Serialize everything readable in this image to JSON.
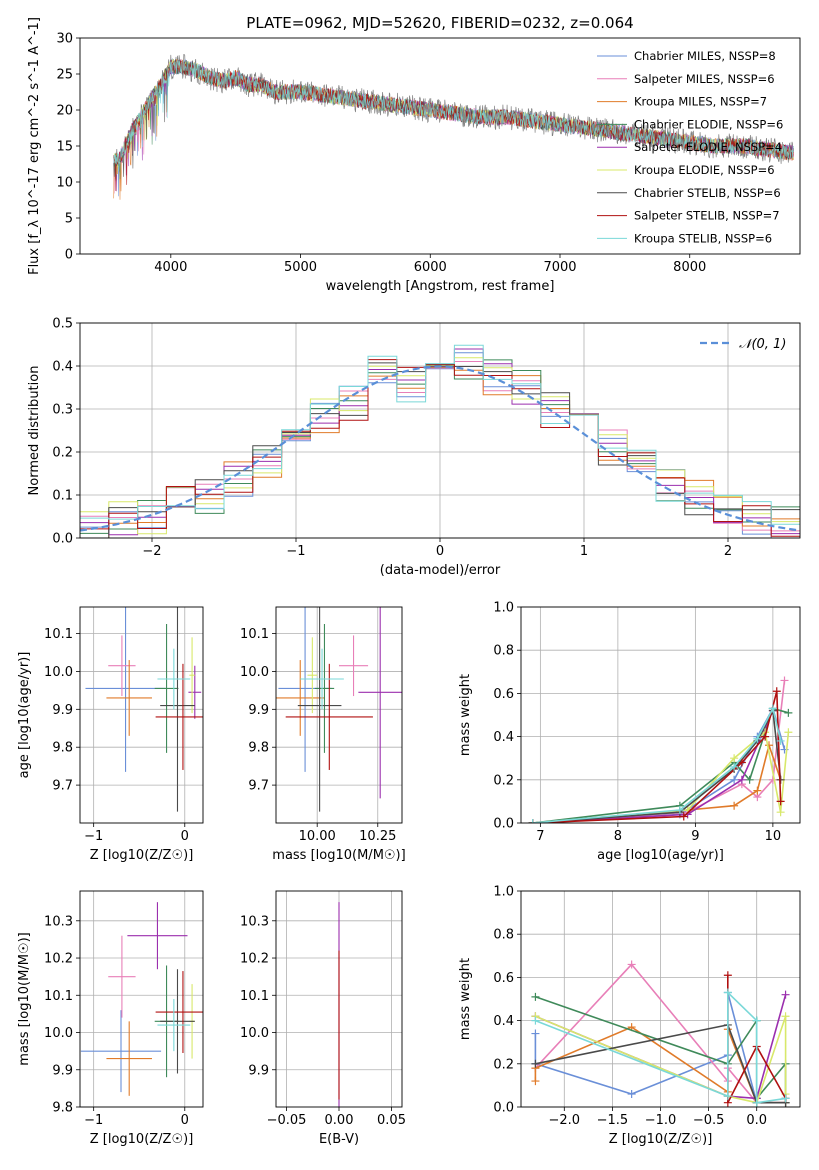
{
  "figure": {
    "title": "PLATE=0962, MJD=52620, FIBERID=0232, z=0.064"
  },
  "colors": {
    "series": [
      "#6a8fd8",
      "#e87fb8",
      "#e07b2a",
      "#3f8a5a",
      "#9b2fae",
      "#d8e86a",
      "#4a4a4a",
      "#b01010",
      "#7ad8d8"
    ],
    "data": "#808080",
    "normal": "#5a8fd8",
    "grid": "#b0b0b0"
  },
  "legend": [
    "Chabrier MILES, N_SSP=8",
    "Salpeter MILES, N_SSP=6",
    "Kroupa MILES, N_SSP=7",
    "Chabrier ELODIE, N_SSP=6",
    "Salpeter ELODIE, N_SSP=4",
    "Kroupa ELODIE, N_SSP=6",
    "Chabrier STELIB, N_SSP=6",
    "Salpeter STELIB, N_SSP=7",
    "Kroupa STELIB, N_SSP=6"
  ],
  "chart_data": [
    {
      "id": "spectrum",
      "type": "line",
      "xlabel": "wavelength [Angstrom, rest frame]",
      "ylabel": "Flux [f_λ 10^-17 erg cm^-2 s^-1 A^-1]",
      "xlim": [
        3300,
        8850
      ],
      "ylim": [
        0,
        30
      ],
      "xticks": [
        4000,
        5000,
        6000,
        7000,
        8000
      ],
      "yticks": [
        0,
        5,
        10,
        15,
        20,
        25,
        30
      ],
      "grid": false,
      "legend_position": "top-right",
      "x": [
        3600,
        3700,
        3800,
        3900,
        4000,
        4100,
        4200,
        4300,
        4400,
        4500,
        4600,
        4700,
        4800,
        4900,
        5000,
        5200,
        5400,
        5600,
        5800,
        6000,
        6200,
        6400,
        6600,
        6800,
        7000,
        7200,
        7400,
        7600,
        7800,
        8000,
        8200,
        8400,
        8600,
        8800
      ],
      "y": [
        13,
        17,
        20,
        23,
        26,
        26,
        25.5,
        24.5,
        24,
        24.5,
        23.5,
        23.5,
        22.5,
        22.5,
        22.5,
        22,
        21.5,
        21,
        20.5,
        20,
        19.5,
        19,
        19,
        18.5,
        18,
        17.5,
        17,
        16.5,
        16,
        15.5,
        15,
        15,
        14.5,
        14
      ]
    },
    {
      "id": "residuals",
      "type": "histogram",
      "xlabel": "(data-model)/error",
      "ylabel": "Normed distribution",
      "xlim": [
        -2.5,
        2.5
      ],
      "ylim": [
        0,
        0.5
      ],
      "xticks": [
        -2,
        -1,
        0,
        1,
        2
      ],
      "yticks": [
        0.0,
        0.1,
        0.2,
        0.3,
        0.4,
        0.5
      ],
      "grid": true,
      "legend": [
        "N(0,1)"
      ],
      "legend_position": "top-right",
      "bin_edges": [
        -2.5,
        -2.3,
        -2.1,
        -1.9,
        -1.7,
        -1.5,
        -1.3,
        -1.1,
        -0.9,
        -0.7,
        -0.5,
        -0.3,
        -0.1,
        0.1,
        0.3,
        0.5,
        0.7,
        0.9,
        1.1,
        1.3,
        1.5,
        1.7,
        1.9,
        2.1,
        2.3,
        2.5
      ],
      "density": [
        0.03,
        0.05,
        0.05,
        0.08,
        0.1,
        0.14,
        0.17,
        0.22,
        0.28,
        0.31,
        0.38,
        0.36,
        0.4,
        0.41,
        0.37,
        0.35,
        0.3,
        0.27,
        0.21,
        0.16,
        0.13,
        0.09,
        0.06,
        0.05,
        0.03
      ]
    },
    {
      "id": "age-vs-Z",
      "type": "scatter",
      "xlabel": "Z [log10(Z/Z☉)]",
      "ylabel": "age  [log10(age/yr)]",
      "xlim": [
        -1.15,
        0.2
      ],
      "ylim": [
        9.6,
        10.17
      ],
      "xticks": [
        -1,
        0
      ],
      "yticks": [
        9.7,
        9.8,
        9.9,
        10.0,
        10.1
      ],
      "grid": true,
      "points": [
        {
          "x": -0.65,
          "y": 9.955,
          "xerr": 0.44,
          "yerr": 0.22
        },
        {
          "x": -0.69,
          "y": 10.015,
          "xerr": 0.15,
          "yerr": 0.08
        },
        {
          "x": -0.61,
          "y": 9.93,
          "xerr": 0.25,
          "yerr": 0.1
        },
        {
          "x": -0.2,
          "y": 9.955,
          "xerr": 0.13,
          "yerr": 0.17
        },
        {
          "x": 0.11,
          "y": 9.945,
          "xerr": 0.07,
          "yerr": 0.07
        },
        {
          "x": 0.08,
          "y": 9.99,
          "xerr": 0.03,
          "yerr": 0.1
        },
        {
          "x": -0.08,
          "y": 9.91,
          "xerr": 0.19,
          "yerr": 0.28
        },
        {
          "x": -0.02,
          "y": 9.88,
          "xerr": 0.3,
          "yerr": 0.14
        },
        {
          "x": -0.12,
          "y": 9.98,
          "xerr": 0.18,
          "yerr": 0.08
        }
      ]
    },
    {
      "id": "age-vs-mass",
      "type": "scatter",
      "xlabel": "mass [log10(M/M☉)]",
      "ylabel": "",
      "xlim": [
        9.83,
        10.35
      ],
      "ylim": [
        9.6,
        10.17
      ],
      "xticks": [
        10.0,
        10.25
      ],
      "yticks": [
        9.7,
        9.8,
        9.9,
        10.0,
        10.1
      ],
      "grid": true,
      "points": [
        {
          "x": 9.95,
          "y": 9.955,
          "xerr": 0.11,
          "yerr": 0.22
        },
        {
          "x": 10.15,
          "y": 10.015,
          "xerr": 0.06,
          "yerr": 0.08
        },
        {
          "x": 9.93,
          "y": 9.93,
          "xerr": 0.1,
          "yerr": 0.1
        },
        {
          "x": 10.03,
          "y": 9.955,
          "xerr": 0.04,
          "yerr": 0.17
        },
        {
          "x": 10.26,
          "y": 9.945,
          "xerr": 0.09,
          "yerr": 0.28
        },
        {
          "x": 9.98,
          "y": 9.99,
          "xerr": 0.02,
          "yerr": 0.1
        },
        {
          "x": 10.01,
          "y": 9.91,
          "xerr": 0.09,
          "yerr": 0.28
        },
        {
          "x": 10.05,
          "y": 9.88,
          "xerr": 0.18,
          "yerr": 0.14
        },
        {
          "x": 10.02,
          "y": 9.98,
          "xerr": 0.09,
          "yerr": 0.08
        }
      ]
    },
    {
      "id": "weight-vs-age",
      "type": "line",
      "xlabel": "age  [log10(age/yr)]",
      "ylabel": "mass weight",
      "xlim": [
        6.75,
        10.35
      ],
      "ylim": [
        0,
        1
      ],
      "xticks": [
        7,
        8,
        9,
        10
      ],
      "yticks": [
        0.0,
        0.2,
        0.4,
        0.6,
        0.8,
        1.0
      ],
      "grid": true,
      "series": [
        {
          "x": [
            6.9,
            8.8,
            9.5,
            9.8,
            10.0,
            10.15
          ],
          "y": [
            0.0,
            0.04,
            0.2,
            0.4,
            0.53,
            0.34
          ]
        },
        {
          "x": [
            6.9,
            8.9,
            9.6,
            9.8,
            10.0,
            10.15
          ],
          "y": [
            0.0,
            0.05,
            0.18,
            0.12,
            0.2,
            0.66
          ]
        },
        {
          "x": [
            6.9,
            8.9,
            9.5,
            9.8,
            9.95,
            10.1
          ],
          "y": [
            0.0,
            0.06,
            0.08,
            0.15,
            0.36,
            0.2
          ]
        },
        {
          "x": [
            6.9,
            8.8,
            9.5,
            9.7,
            10.0,
            10.2
          ],
          "y": [
            0.0,
            0.08,
            0.28,
            0.2,
            0.53,
            0.51
          ]
        },
        {
          "x": [
            6.9,
            8.9,
            9.6,
            10.0
          ],
          "y": [
            0.0,
            0.04,
            0.2,
            0.52
          ]
        },
        {
          "x": [
            6.9,
            8.9,
            9.5,
            9.9,
            10.1,
            10.2
          ],
          "y": [
            0.0,
            0.06,
            0.3,
            0.42,
            0.05,
            0.42
          ]
        },
        {
          "x": [
            6.9,
            8.8,
            9.5,
            9.8,
            10.0,
            10.1
          ],
          "y": [
            0.0,
            0.05,
            0.25,
            0.38,
            0.52,
            0.2
          ]
        },
        {
          "x": [
            6.9,
            8.85,
            9.6,
            9.9,
            10.05,
            10.1
          ],
          "y": [
            0.0,
            0.03,
            0.28,
            0.4,
            0.61,
            0.1
          ]
        },
        {
          "x": [
            6.9,
            8.8,
            9.5,
            9.8,
            10.0,
            10.1
          ],
          "y": [
            0.0,
            0.06,
            0.26,
            0.39,
            0.53,
            0.38
          ]
        }
      ]
    },
    {
      "id": "mass-vs-Z",
      "type": "scatter",
      "xlabel": "Z [log10(Z/Z☉)]",
      "ylabel": "mass [log10(M/M☉)]",
      "xlim": [
        -1.15,
        0.2
      ],
      "ylim": [
        9.8,
        10.38
      ],
      "xticks": [
        -1,
        0
      ],
      "yticks": [
        9.8,
        9.9,
        10.0,
        10.1,
        10.2,
        10.3
      ],
      "grid": true,
      "points": [
        {
          "x": -0.7,
          "y": 9.95,
          "xerr": 0.44,
          "yerr": 0.11
        },
        {
          "x": -0.69,
          "y": 10.15,
          "xerr": 0.15,
          "yerr": 0.11
        },
        {
          "x": -0.61,
          "y": 9.93,
          "xerr": 0.25,
          "yerr": 0.1
        },
        {
          "x": -0.2,
          "y": 10.03,
          "xerr": 0.13,
          "yerr": 0.15
        },
        {
          "x": -0.3,
          "y": 10.26,
          "xerr": 0.33,
          "yerr": 0.09
        },
        {
          "x": 0.08,
          "y": 10.03,
          "xerr": 0.03,
          "yerr": 0.1
        },
        {
          "x": -0.08,
          "y": 10.03,
          "xerr": 0.19,
          "yerr": 0.14
        },
        {
          "x": -0.02,
          "y": 10.055,
          "xerr": 0.3,
          "yerr": 0.11
        },
        {
          "x": -0.12,
          "y": 10.02,
          "xerr": 0.18,
          "yerr": 0.07
        }
      ]
    },
    {
      "id": "mass-vs-EBV",
      "type": "scatter",
      "xlabel": "E(B-V)",
      "ylabel": "",
      "xlim": [
        -0.06,
        0.06
      ],
      "ylim": [
        9.8,
        10.38
      ],
      "xticks": [
        -0.05,
        0.0,
        0.05
      ],
      "yticks": [
        9.9,
        10.0,
        10.1,
        10.2,
        10.3
      ],
      "grid": true,
      "points": [
        {
          "x": 0.0,
          "y": 10.03,
          "xerr": 0.0,
          "yerr": 0.32
        },
        {
          "x": 0.0,
          "y": 10.02,
          "xerr": 0.0,
          "yerr": 0.2
        }
      ]
    },
    {
      "id": "weight-vs-Z",
      "type": "line",
      "xlabel": "Z [log10(Z/Z☉)]",
      "ylabel": "mass weight",
      "xlim": [
        -2.45,
        0.45
      ],
      "ylim": [
        0,
        1
      ],
      "xticks": [
        -2.0,
        -1.5,
        -1.0,
        -0.5,
        0.0
      ],
      "yticks": [
        0.0,
        0.2,
        0.4,
        0.6,
        0.8,
        1.0
      ],
      "grid": true,
      "series": [
        {
          "x": [
            -2.3,
            -2.3,
            -1.3,
            -0.3,
            -0.3,
            0.0,
            0.3
          ],
          "y": [
            0.34,
            0.2,
            0.06,
            0.24,
            0.53,
            0.02,
            0.02
          ]
        },
        {
          "x": [
            -2.3,
            -1.3,
            -0.3,
            -0.3,
            0.0,
            0.3
          ],
          "y": [
            0.18,
            0.66,
            0.12,
            0.18,
            0.02,
            0.02
          ]
        },
        {
          "x": [
            -2.3,
            -2.3,
            -1.3,
            -0.3,
            -0.3,
            0.0,
            0.3
          ],
          "y": [
            0.12,
            0.18,
            0.37,
            0.07,
            0.36,
            0.02,
            0.02
          ]
        },
        {
          "x": [
            -2.3,
            -0.3,
            0.0,
            0.0,
            0.3,
            0.3
          ],
          "y": [
            0.51,
            0.2,
            0.4,
            0.04,
            0.2,
            0.02
          ]
        },
        {
          "x": [
            -2.3,
            -0.3,
            0.0,
            0.3
          ],
          "y": [
            0.42,
            0.05,
            0.04,
            0.52
          ]
        },
        {
          "x": [
            -2.3,
            -0.3,
            0.0,
            0.3,
            0.3
          ],
          "y": [
            0.42,
            0.05,
            0.02,
            0.42,
            0.06
          ]
        },
        {
          "x": [
            -2.3,
            -0.3,
            0.0,
            0.3
          ],
          "y": [
            0.2,
            0.38,
            0.02,
            0.02
          ]
        },
        {
          "x": [
            -0.3,
            -0.3,
            0.0,
            0.3
          ],
          "y": [
            0.61,
            0.02,
            0.28,
            0.04
          ]
        },
        {
          "x": [
            -2.3,
            -0.3,
            -0.3,
            0.0,
            0.0,
            0.3
          ],
          "y": [
            0.4,
            0.05,
            0.53,
            0.4,
            0.02,
            0.04
          ]
        }
      ]
    }
  ]
}
